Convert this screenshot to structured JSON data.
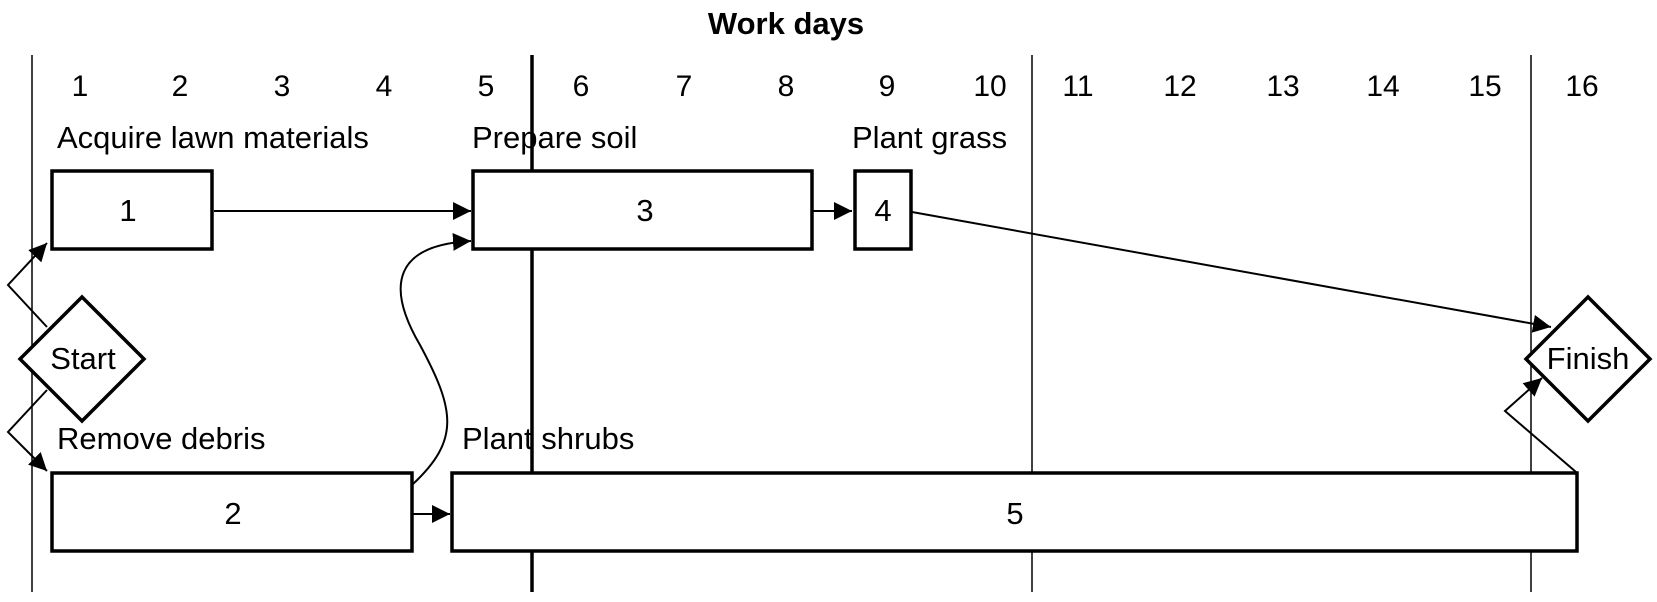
{
  "title": "Work days",
  "days": [
    "1",
    "2",
    "3",
    "4",
    "5",
    "6",
    "7",
    "8",
    "9",
    "10",
    "11",
    "12",
    "13",
    "14",
    "15",
    "16"
  ],
  "tasks": [
    {
      "id": "1",
      "label": "Acquire lawn materials"
    },
    {
      "id": "2",
      "label": "Remove debris"
    },
    {
      "id": "3",
      "label": "Prepare soil"
    },
    {
      "id": "4",
      "label": "Plant grass"
    },
    {
      "id": "5",
      "label": "Plant shrubs"
    }
  ],
  "start_label": "Start",
  "finish_label": "Finish"
}
